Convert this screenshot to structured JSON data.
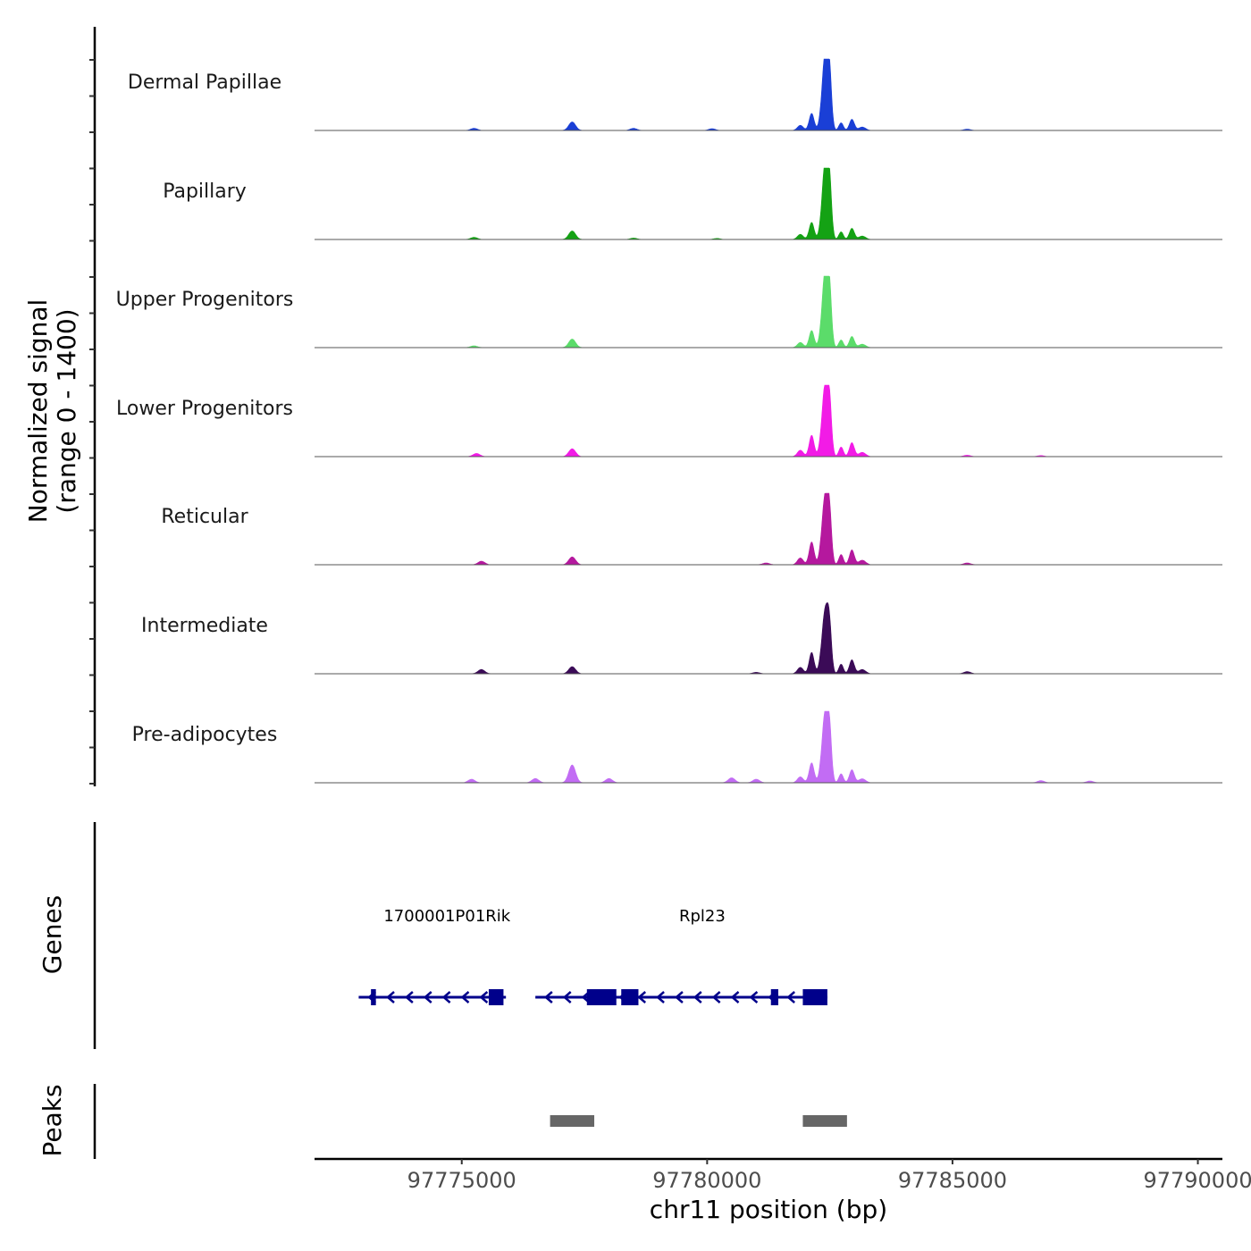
{
  "chart_data": {
    "type": "area",
    "title": "",
    "ylabel_line1": "Normalized signal",
    "ylabel_line2": "(range 0 - 1400)",
    "y_range": [
      0,
      1400
    ],
    "xlabel": "chr11 position (bp)",
    "xlim": [
      97772000,
      97790500
    ],
    "x_ticks": [
      97775000,
      97780000,
      97785000,
      97790000
    ],
    "x_tick_labels": [
      "97775000",
      "97780000",
      "97785000",
      "97790000"
    ],
    "tracks": [
      {
        "name": "Dermal Papillae",
        "color": "#1a3fd6",
        "max": 1000,
        "peak_height": 1000,
        "side_height": 240,
        "minor": [
          [
            97777250,
            120
          ],
          [
            97775250,
            30
          ],
          [
            97778500,
            30
          ],
          [
            97780100,
            25
          ],
          [
            97785300,
            18
          ]
        ]
      },
      {
        "name": "Papillary",
        "color": "#14a214",
        "max": 1000,
        "peak_height": 1000,
        "side_height": 240,
        "minor": [
          [
            97777250,
            120
          ],
          [
            97775250,
            30
          ],
          [
            97778500,
            20
          ],
          [
            97780200,
            15
          ]
        ]
      },
      {
        "name": "Upper Progenitors",
        "color": "#5bdc6a",
        "max": 1000,
        "peak_height": 1000,
        "side_height": 240,
        "minor": [
          [
            97777250,
            120
          ],
          [
            97775250,
            25
          ]
        ]
      },
      {
        "name": "Lower Progenitors",
        "color": "#f21be6",
        "max": 1000,
        "peak_height": 940,
        "side_height": 300,
        "minor": [
          [
            97777250,
            110
          ],
          [
            97775300,
            45
          ],
          [
            97785300,
            20
          ],
          [
            97786800,
            15
          ]
        ]
      },
      {
        "name": "Reticular",
        "color": "#b5189e",
        "max": 1000,
        "peak_height": 900,
        "side_height": 320,
        "minor": [
          [
            97777250,
            110
          ],
          [
            97775400,
            50
          ],
          [
            97785300,
            25
          ],
          [
            97781200,
            25
          ]
        ]
      },
      {
        "name": "Intermediate",
        "color": "#3b0b57",
        "max": 1000,
        "peak_height": 820,
        "side_height": 300,
        "minor": [
          [
            97777250,
            100
          ],
          [
            97775400,
            60
          ],
          [
            97785300,
            30
          ],
          [
            97781000,
            20
          ]
        ]
      },
      {
        "name": "Pre-adipocytes",
        "color": "#c26cf4",
        "max": 1000,
        "peak_height": 920,
        "side_height": 280,
        "minor": [
          [
            97777250,
            250
          ],
          [
            97776500,
            60
          ],
          [
            97775200,
            50
          ],
          [
            97778000,
            60
          ],
          [
            97780500,
            70
          ],
          [
            97781000,
            50
          ],
          [
            97786800,
            30
          ],
          [
            97787800,
            25
          ]
        ]
      }
    ],
    "main_peak_center": 97782400,
    "genes": [
      {
        "name": "1700001P01Rik",
        "start": 97772900,
        "end": 97775900,
        "strand": "-",
        "label_pos": 97774700,
        "exons": [
          [
            97773150,
            97773250
          ],
          [
            97775550,
            97775850
          ]
        ]
      },
      {
        "name": "Rpl23",
        "start": 97776500,
        "end": 97782450,
        "strand": "-",
        "label_pos": 97779900,
        "exons": [
          [
            97777550,
            97778150
          ],
          [
            97778250,
            97778600
          ],
          [
            97781300,
            97781450
          ],
          [
            97781950,
            97782450
          ]
        ]
      }
    ],
    "gene_track_title": "Genes",
    "peaks_track_title": "Peaks",
    "peaks": [
      [
        97776800,
        97777700
      ],
      [
        97781950,
        97782850
      ]
    ],
    "gene_color": "#00008b",
    "peak_color": "#666666"
  }
}
